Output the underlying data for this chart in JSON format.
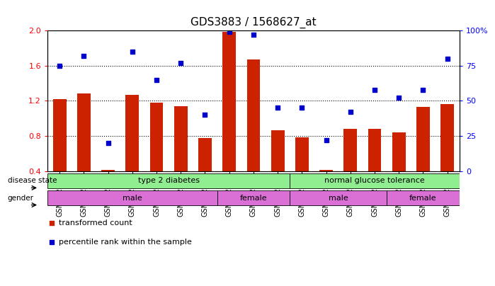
{
  "title": "GDS3883 / 1568627_at",
  "samples": [
    "GSM572808",
    "GSM572809",
    "GSM572811",
    "GSM572813",
    "GSM572815",
    "GSM572816",
    "GSM572807",
    "GSM572810",
    "GSM572812",
    "GSM572814",
    "GSM572800",
    "GSM572801",
    "GSM572804",
    "GSM572805",
    "GSM572802",
    "GSM572803",
    "GSM572806"
  ],
  "bar_values": [
    1.22,
    1.28,
    0.42,
    1.27,
    1.18,
    1.14,
    0.78,
    1.98,
    1.67,
    0.87,
    0.79,
    0.42,
    0.88,
    0.88,
    0.84,
    1.13,
    1.16
  ],
  "dot_values": [
    75,
    82,
    20,
    85,
    65,
    77,
    40,
    99,
    97,
    45,
    45,
    22,
    42,
    58,
    52,
    58,
    80
  ],
  "ylim_left": [
    0.4,
    2.0
  ],
  "ylim_right": [
    0,
    100
  ],
  "yticks_left": [
    0.4,
    0.8,
    1.2,
    1.6,
    2.0
  ],
  "yticks_right": [
    0,
    25,
    50,
    75,
    100
  ],
  "bar_color": "#CC2200",
  "dot_color": "#0000CC",
  "disease_state_groups": [
    {
      "label": "type 2 diabetes",
      "start": 0,
      "end": 9,
      "color": "#90EE90"
    },
    {
      "label": "normal glucose tolerance",
      "start": 10,
      "end": 16,
      "color": "#90EE90"
    }
  ],
  "gender_groups": [
    {
      "label": "male",
      "start": 0,
      "end": 6,
      "color": "#DA70D6"
    },
    {
      "label": "female",
      "start": 7,
      "end": 9,
      "color": "#DA70D6"
    },
    {
      "label": "male",
      "start": 10,
      "end": 13,
      "color": "#DA70D6"
    },
    {
      "label": "female",
      "start": 14,
      "end": 16,
      "color": "#DA70D6"
    }
  ],
  "legend_bar_label": "transformed count",
  "legend_dot_label": "percentile rank within the sample",
  "background_color": "#ffffff",
  "title_fontsize": 11,
  "tick_fontsize": 7,
  "label_fontsize": 8.5
}
